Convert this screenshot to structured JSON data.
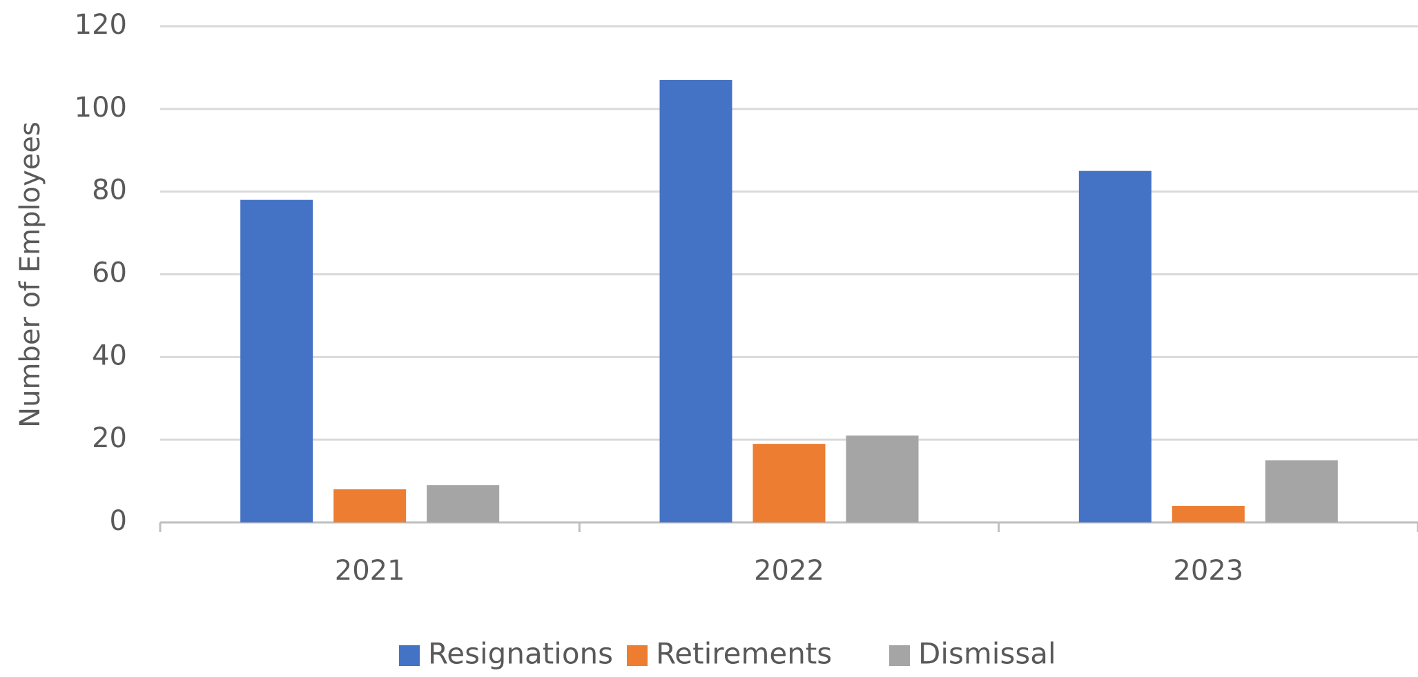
{
  "chart_data": {
    "type": "bar",
    "y_label": "Number of Employees",
    "categories": [
      "2021",
      "2022",
      "2023"
    ],
    "series": [
      {
        "name": "Resignations",
        "color": "#4472c4",
        "values": [
          78,
          107,
          85
        ]
      },
      {
        "name": "Retirements",
        "color": "#ed7d31",
        "values": [
          8,
          19,
          4
        ]
      },
      {
        "name": "Dismissal",
        "color": "#a5a5a5",
        "values": [
          9,
          21,
          15
        ]
      }
    ],
    "ylim": [
      0,
      120
    ],
    "yticks": [
      0,
      20,
      40,
      60,
      80,
      100,
      120
    ],
    "grid": true,
    "legend": "bottom"
  }
}
